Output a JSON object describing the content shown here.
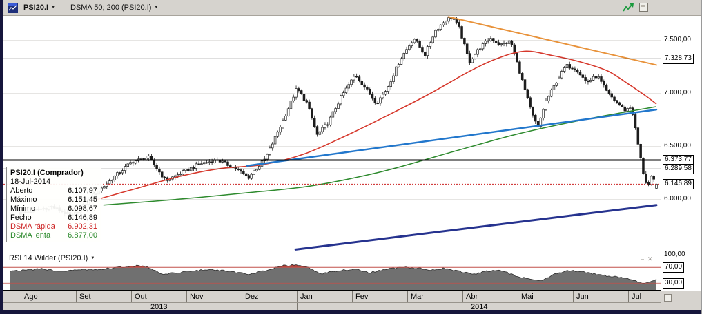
{
  "toolbar": {
    "instrument_label": "PSI20.I",
    "indicator_label": "DSMA 50; 200 (PSI20.I)"
  },
  "tooltip": {
    "title": "PSI20.I (Comprador)",
    "date": "18-Jul-2014",
    "rows": [
      {
        "label": "Aberto",
        "value": "6.107,97",
        "color": "#000000"
      },
      {
        "label": "Máximo",
        "value": "6.151,45",
        "color": "#000000"
      },
      {
        "label": "Mínimo",
        "value": "6.098,67",
        "color": "#000000"
      },
      {
        "label": "Fecho",
        "value": "6.146,89",
        "color": "#000000"
      },
      {
        "label": "DSMA rápida",
        "value": "6.902,31",
        "color": "#cc2222"
      },
      {
        "label": "DSMA lenta",
        "value": "6.877,00",
        "color": "#2d8a2d"
      }
    ]
  },
  "price_axis": {
    "ticks": [
      {
        "label": "7.500,00",
        "price": 7500,
        "boxed": false
      },
      {
        "label": "7.328,73",
        "price": 7328.73,
        "boxed": true
      },
      {
        "label": "7.000,00",
        "price": 7000,
        "boxed": false
      },
      {
        "label": "6.500,00",
        "price": 6500,
        "boxed": false
      },
      {
        "label": "6.373,77",
        "price": 6373.77,
        "boxed": true
      },
      {
        "label": "6.289,58",
        "price": 6289.58,
        "boxed": true
      },
      {
        "label": "6.146,89",
        "price": 6146.89,
        "boxed": true
      },
      {
        "label": "6.000,00",
        "price": 6000,
        "boxed": false
      }
    ]
  },
  "rsi_panel": {
    "title": "RSI 14 Wilder (PSI20.I)",
    "labels": [
      {
        "label": "100,00",
        "value": 100,
        "boxed": false
      },
      {
        "label": "70,00",
        "value": 70,
        "boxed": true
      },
      {
        "label": "30,00",
        "value": 30,
        "boxed": true
      }
    ]
  },
  "time_axis": {
    "months": [
      "Ago",
      "Set",
      "Out",
      "Nov",
      "Dez",
      "Jan",
      "Fev",
      "Mar",
      "Abr",
      "Mai",
      "Jun",
      "Jul"
    ],
    "years": [
      {
        "label": "2013",
        "from_month": 0,
        "to_month": 5
      },
      {
        "label": "2014",
        "from_month": 5,
        "to_month": 11.6
      }
    ]
  },
  "chart_data": {
    "type": "candlestick",
    "instrument": "PSI20.I",
    "period": "daily",
    "date_range": [
      "Ago-2013",
      "18-Jul-2014"
    ],
    "y_axis": {
      "visible_range": [
        5520,
        7730
      ],
      "gridlines": [
        7500,
        7000,
        6500,
        6000
      ]
    },
    "last_candle": {
      "date": "18-Jul-2014",
      "open": 6107.97,
      "high": 6151.45,
      "low": 6098.67,
      "close": 6146.89
    },
    "close_path": [
      [
        0.0,
        5870
      ],
      [
        0.05,
        5935
      ],
      [
        0.082,
        5840
      ],
      [
        0.12,
        6065
      ],
      [
        0.147,
        6210
      ],
      [
        0.175,
        6355
      ],
      [
        0.202,
        6400
      ],
      [
        0.229,
        6180
      ],
      [
        0.256,
        6260
      ],
      [
        0.283,
        6340
      ],
      [
        0.31,
        6375
      ],
      [
        0.337,
        6300
      ],
      [
        0.359,
        6210
      ],
      [
        0.386,
        6390
      ],
      [
        0.413,
        6745
      ],
      [
        0.435,
        7050
      ],
      [
        0.451,
        6910
      ],
      [
        0.467,
        6610
      ],
      [
        0.484,
        6725
      ],
      [
        0.505,
        6975
      ],
      [
        0.527,
        7180
      ],
      [
        0.543,
        7050
      ],
      [
        0.56,
        6910
      ],
      [
        0.576,
        7040
      ],
      [
        0.598,
        7330
      ],
      [
        0.619,
        7525
      ],
      [
        0.636,
        7365
      ],
      [
        0.652,
        7590
      ],
      [
        0.668,
        7690
      ],
      [
        0.679,
        7725
      ],
      [
        0.69,
        7620
      ],
      [
        0.706,
        7300
      ],
      [
        0.722,
        7430
      ],
      [
        0.739,
        7525
      ],
      [
        0.755,
        7460
      ],
      [
        0.771,
        7495
      ],
      [
        0.787,
        7170
      ],
      [
        0.804,
        6810
      ],
      [
        0.814,
        6680
      ],
      [
        0.825,
        6910
      ],
      [
        0.842,
        7105
      ],
      [
        0.858,
        7265
      ],
      [
        0.874,
        7235
      ],
      [
        0.89,
        7105
      ],
      [
        0.907,
        7170
      ],
      [
        0.923,
        7005
      ],
      [
        0.939,
        6910
      ],
      [
        0.95,
        6845
      ],
      [
        0.961,
        6875
      ],
      [
        0.972,
        6490
      ],
      [
        0.979,
        6260
      ],
      [
        0.986,
        6115
      ],
      [
        0.992,
        6210
      ],
      [
        1.0,
        6146.89
      ]
    ],
    "indicators": {
      "ma_fast": {
        "name": "DSMA 50",
        "last_value": 6902.31,
        "color": "#d6382c",
        "points": [
          [
            0.12,
            6000
          ],
          [
            0.185,
            6110
          ],
          [
            0.251,
            6220
          ],
          [
            0.316,
            6295
          ],
          [
            0.381,
            6330
          ],
          [
            0.446,
            6430
          ],
          [
            0.511,
            6600
          ],
          [
            0.576,
            6790
          ],
          [
            0.641,
            6990
          ],
          [
            0.706,
            7210
          ],
          [
            0.749,
            7330
          ],
          [
            0.793,
            7400
          ],
          [
            0.836,
            7360
          ],
          [
            0.88,
            7300
          ],
          [
            0.923,
            7215
          ],
          [
            0.956,
            7090
          ],
          [
            0.983,
            6980
          ],
          [
            1.0,
            6902.31
          ]
        ]
      },
      "ma_slow": {
        "name": "DSMA 200",
        "last_value": 6877.0,
        "color": "#2d8a2d",
        "points": [
          [
            0.131,
            5950
          ],
          [
            0.24,
            6000
          ],
          [
            0.348,
            6060
          ],
          [
            0.457,
            6130
          ],
          [
            0.565,
            6260
          ],
          [
            0.673,
            6440
          ],
          [
            0.782,
            6620
          ],
          [
            0.89,
            6760
          ],
          [
            1.0,
            6877
          ]
        ]
      }
    },
    "levels": [
      {
        "price": 7328.73,
        "style": "solid",
        "color": "#000000",
        "width": 1
      },
      {
        "price": 6373.77,
        "style": "solid",
        "color": "#000000",
        "width": 2
      },
      {
        "price": 6289.58,
        "style": "solid",
        "color": "#000000",
        "width": 1
      },
      {
        "price": 6146.89,
        "style": "dotted",
        "color": "#cc2222",
        "width": 1
      }
    ],
    "trendlines": [
      {
        "name": "descending-resistance",
        "color": "#e8923a",
        "width": 2,
        "p1": [
          0.673,
          7725
        ],
        "p2": [
          1.0,
          7270
        ]
      },
      {
        "name": "ascending-support-upper",
        "color": "#2277cc",
        "width": 2.5,
        "p1": [
          0.357,
          6320
        ],
        "p2": [
          1.0,
          6850
        ]
      },
      {
        "name": "ascending-support-lower",
        "color": "#26338f",
        "width": 3,
        "p1": [
          0.433,
          5530
        ],
        "p2": [
          1.0,
          5950
        ]
      }
    ],
    "rsi": {
      "name": "RSI 14 Wilder",
      "overbought": 70,
      "oversold": 30,
      "range": [
        0,
        100
      ],
      "points": [
        [
          0.001,
          62
        ],
        [
          0.034,
          66
        ],
        [
          0.066,
          60
        ],
        [
          0.099,
          64
        ],
        [
          0.131,
          66
        ],
        [
          0.169,
          72
        ],
        [
          0.185,
          74
        ],
        [
          0.202,
          70
        ],
        [
          0.223,
          52
        ],
        [
          0.245,
          56
        ],
        [
          0.272,
          62
        ],
        [
          0.305,
          64
        ],
        [
          0.337,
          58
        ],
        [
          0.359,
          52
        ],
        [
          0.386,
          62
        ],
        [
          0.413,
          74
        ],
        [
          0.435,
          76
        ],
        [
          0.451,
          70
        ],
        [
          0.473,
          54
        ],
        [
          0.5,
          62
        ],
        [
          0.527,
          66
        ],
        [
          0.549,
          56
        ],
        [
          0.576,
          66
        ],
        [
          0.603,
          70
        ],
        [
          0.625,
          68
        ],
        [
          0.646,
          64
        ],
        [
          0.668,
          68
        ],
        [
          0.69,
          60
        ],
        [
          0.711,
          52
        ],
        [
          0.733,
          60
        ],
        [
          0.755,
          62
        ],
        [
          0.777,
          50
        ],
        [
          0.798,
          40
        ],
        [
          0.82,
          38
        ],
        [
          0.842,
          55
        ],
        [
          0.863,
          62
        ],
        [
          0.885,
          58
        ],
        [
          0.907,
          52
        ],
        [
          0.928,
          47
        ],
        [
          0.95,
          44
        ],
        [
          0.966,
          36
        ],
        [
          0.979,
          29
        ],
        [
          0.989,
          33
        ],
        [
          1.0,
          40
        ]
      ]
    }
  }
}
